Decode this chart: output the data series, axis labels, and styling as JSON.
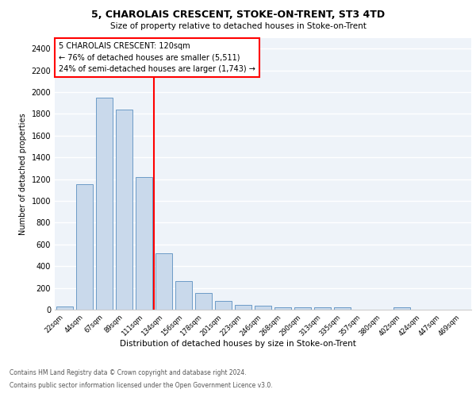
{
  "title1": "5, CHAROLAIS CRESCENT, STOKE-ON-TRENT, ST3 4TD",
  "title2": "Size of property relative to detached houses in Stoke-on-Trent",
  "xlabel": "Distribution of detached houses by size in Stoke-on-Trent",
  "ylabel": "Number of detached properties",
  "bar_labels": [
    "22sqm",
    "44sqm",
    "67sqm",
    "89sqm",
    "111sqm",
    "134sqm",
    "156sqm",
    "178sqm",
    "201sqm",
    "223sqm",
    "246sqm",
    "268sqm",
    "290sqm",
    "313sqm",
    "335sqm",
    "357sqm",
    "380sqm",
    "402sqm",
    "424sqm",
    "447sqm",
    "469sqm"
  ],
  "bar_values": [
    30,
    1150,
    1950,
    1840,
    1220,
    515,
    265,
    155,
    80,
    45,
    40,
    20,
    20,
    20,
    20,
    0,
    0,
    20,
    0,
    0,
    0
  ],
  "bar_color": "#c9d9eb",
  "bar_edge_color": "#5a8fc0",
  "red_line_x": 4.5,
  "property_size": "120sqm",
  "pct_smaller": 76,
  "count_smaller": 5511,
  "pct_larger_semi": 24,
  "count_larger_semi": 1743,
  "ylim": [
    0,
    2500
  ],
  "yticks": [
    0,
    200,
    400,
    600,
    800,
    1000,
    1200,
    1400,
    1600,
    1800,
    2000,
    2200,
    2400
  ],
  "footer1": "Contains HM Land Registry data © Crown copyright and database right 2024.",
  "footer2": "Contains public sector information licensed under the Open Government Licence v3.0.",
  "background_color": "#eef3f9",
  "grid_color": "#ffffff"
}
